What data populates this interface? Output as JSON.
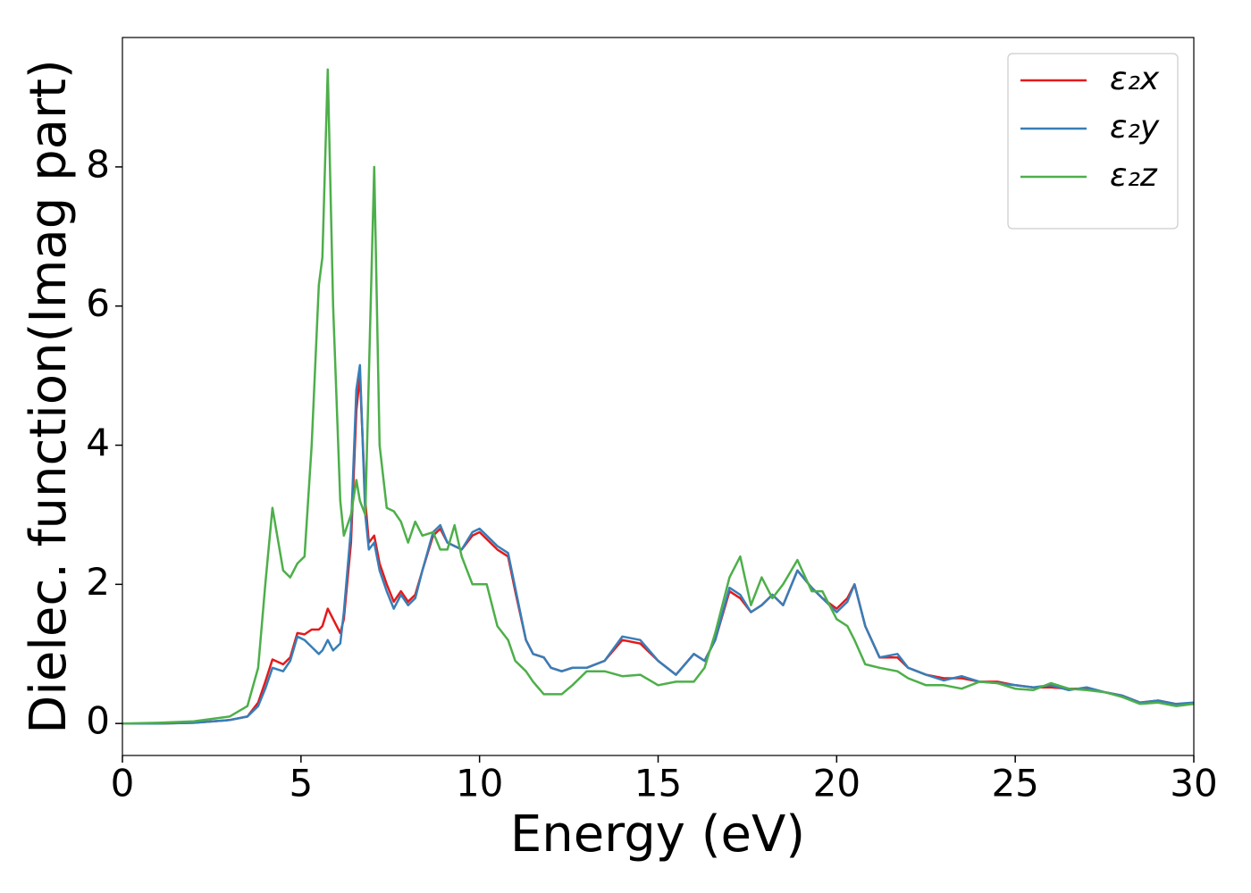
{
  "chart_data": {
    "type": "line",
    "xlabel": "Energy (eV)",
    "ylabel": "Dielec. function(Imag part)",
    "x": [
      0,
      1,
      2,
      3,
      3.5,
      3.8,
      4,
      4.2,
      4.5,
      4.7,
      4.9,
      5.1,
      5.3,
      5.5,
      5.6,
      5.75,
      5.9,
      6.1,
      6.2,
      6.4,
      6.55,
      6.65,
      6.8,
      6.9,
      7.05,
      7.2,
      7.4,
      7.6,
      7.8,
      8,
      8.2,
      8.4,
      8.7,
      8.9,
      9.1,
      9.3,
      9.5,
      9.8,
      10,
      10.2,
      10.5,
      10.8,
      11,
      11.3,
      11.5,
      11.8,
      12,
      12.3,
      12.6,
      13,
      13.5,
      14,
      14.5,
      15,
      15.5,
      16,
      16.3,
      16.6,
      17,
      17.3,
      17.6,
      17.9,
      18.2,
      18.5,
      18.9,
      19.3,
      19.6,
      20,
      20.3,
      20.5,
      20.8,
      21.2,
      21.7,
      22,
      22.5,
      23,
      23.5,
      24,
      24.5,
      25,
      25.5,
      26,
      26.5,
      27,
      27.5,
      28,
      28.5,
      29,
      29.5,
      30
    ],
    "series": [
      {
        "name": "ε₂x",
        "color": "#e41a1c",
        "values": [
          0,
          0,
          0.01,
          0.05,
          0.1,
          0.3,
          0.6,
          0.92,
          0.85,
          0.95,
          1.3,
          1.28,
          1.35,
          1.35,
          1.4,
          1.65,
          1.5,
          1.3,
          1.5,
          2.6,
          4.5,
          5.0,
          3.2,
          2.6,
          2.7,
          2.3,
          2.0,
          1.75,
          1.9,
          1.75,
          1.85,
          2.2,
          2.7,
          2.8,
          2.6,
          2.55,
          2.5,
          2.7,
          2.75,
          2.65,
          2.5,
          2.4,
          1.9,
          1.2,
          1.0,
          0.95,
          0.8,
          0.75,
          0.8,
          0.8,
          0.9,
          1.2,
          1.15,
          0.9,
          0.7,
          1.0,
          0.9,
          1.2,
          1.9,
          1.8,
          1.6,
          1.7,
          1.85,
          1.7,
          2.2,
          1.95,
          1.8,
          1.65,
          1.8,
          2.0,
          1.4,
          0.95,
          0.95,
          0.8,
          0.7,
          0.65,
          0.65,
          0.6,
          0.6,
          0.55,
          0.52,
          0.52,
          0.5,
          0.5,
          0.45,
          0.4,
          0.3,
          0.33,
          0.28,
          0.28
        ]
      },
      {
        "name": "ε₂y",
        "color": "#377eb8",
        "values": [
          0,
          0,
          0.01,
          0.05,
          0.1,
          0.25,
          0.5,
          0.8,
          0.75,
          0.9,
          1.25,
          1.2,
          1.1,
          1.0,
          1.05,
          1.2,
          1.05,
          1.15,
          1.6,
          2.8,
          4.8,
          5.15,
          3.0,
          2.5,
          2.6,
          2.2,
          1.9,
          1.65,
          1.85,
          1.7,
          1.8,
          2.2,
          2.75,
          2.85,
          2.6,
          2.55,
          2.5,
          2.75,
          2.8,
          2.7,
          2.55,
          2.45,
          1.95,
          1.2,
          1.0,
          0.95,
          0.8,
          0.75,
          0.8,
          0.8,
          0.9,
          1.25,
          1.2,
          0.9,
          0.7,
          1.0,
          0.9,
          1.2,
          1.95,
          1.85,
          1.6,
          1.7,
          1.85,
          1.7,
          2.2,
          1.95,
          1.8,
          1.6,
          1.75,
          2.0,
          1.4,
          0.95,
          1.0,
          0.8,
          0.7,
          0.62,
          0.68,
          0.6,
          0.58,
          0.55,
          0.52,
          0.55,
          0.48,
          0.52,
          0.45,
          0.4,
          0.3,
          0.33,
          0.28,
          0.3
        ]
      },
      {
        "name": "ε₂z",
        "color": "#4daf4a",
        "values": [
          0,
          0.01,
          0.03,
          0.1,
          0.25,
          0.8,
          2.0,
          3.1,
          2.2,
          2.1,
          2.3,
          2.4,
          4.0,
          6.3,
          6.7,
          9.4,
          6.0,
          3.2,
          2.7,
          3.0,
          3.5,
          3.2,
          3.0,
          5.0,
          8.0,
          4.0,
          3.1,
          3.05,
          2.9,
          2.6,
          2.9,
          2.7,
          2.75,
          2.5,
          2.5,
          2.85,
          2.4,
          2.0,
          2.0,
          2.0,
          1.4,
          1.2,
          0.9,
          0.75,
          0.6,
          0.42,
          0.42,
          0.42,
          0.55,
          0.75,
          0.75,
          0.68,
          0.7,
          0.55,
          0.6,
          0.6,
          0.8,
          1.3,
          2.1,
          2.4,
          1.7,
          2.1,
          1.8,
          2.0,
          2.35,
          1.9,
          1.9,
          1.5,
          1.4,
          1.2,
          0.85,
          0.8,
          0.75,
          0.65,
          0.55,
          0.55,
          0.5,
          0.6,
          0.58,
          0.5,
          0.48,
          0.58,
          0.5,
          0.48,
          0.45,
          0.38,
          0.28,
          0.3,
          0.25,
          0.28
        ]
      }
    ],
    "xlim": [
      0,
      30
    ],
    "xticks": [
      0,
      5,
      10,
      15,
      20,
      25,
      30
    ],
    "ylim": [
      -0.46,
      9.86
    ],
    "yticks": [
      0,
      2,
      4,
      6,
      8
    ],
    "legend": "upper right"
  }
}
